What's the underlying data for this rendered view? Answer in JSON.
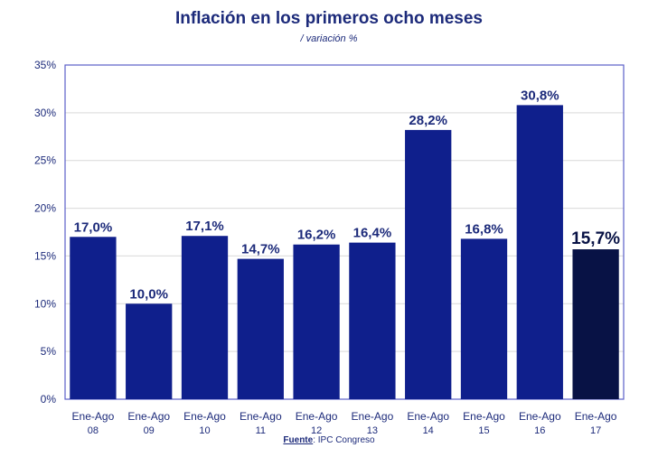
{
  "chart_data": {
    "type": "bar",
    "title": "Inflación en los primeros ocho meses",
    "subtitle": "/ variación %",
    "xlabel": "",
    "ylabel": "",
    "categories": [
      [
        "Ene-Ago",
        "08"
      ],
      [
        "Ene-Ago",
        "09"
      ],
      [
        "Ene-Ago",
        "10"
      ],
      [
        "Ene-Ago",
        "11"
      ],
      [
        "Ene-Ago",
        "12"
      ],
      [
        "Ene-Ago",
        "13"
      ],
      [
        "Ene-Ago",
        "14"
      ],
      [
        "Ene-Ago",
        "15"
      ],
      [
        "Ene-Ago",
        "16"
      ],
      [
        "Ene-Ago",
        "17"
      ]
    ],
    "values": [
      17.0,
      10.0,
      17.1,
      14.7,
      16.2,
      16.4,
      28.2,
      16.8,
      30.8,
      15.7
    ],
    "data_labels": [
      "17,0%",
      "10,0%",
      "17,1%",
      "14,7%",
      "16,2%",
      "16,4%",
      "28,2%",
      "16,8%",
      "30,8%",
      "15,7%"
    ],
    "ylim": [
      0,
      35
    ],
    "yticks": [
      0,
      5,
      10,
      15,
      20,
      25,
      30,
      35
    ],
    "ytick_labels": [
      "0%",
      "5%",
      "10%",
      "15%",
      "20%",
      "25%",
      "30%",
      "35%"
    ],
    "grid": true,
    "colors": {
      "bar": "#0f1f8c",
      "highlight_bar": "#081245",
      "text": "#1c2a7a",
      "grid": "#d9d9d9",
      "frame": "#5b5fc7"
    },
    "highlight_index": 9
  },
  "source": {
    "label": "Fuente",
    "text": ": IPC Congreso"
  }
}
